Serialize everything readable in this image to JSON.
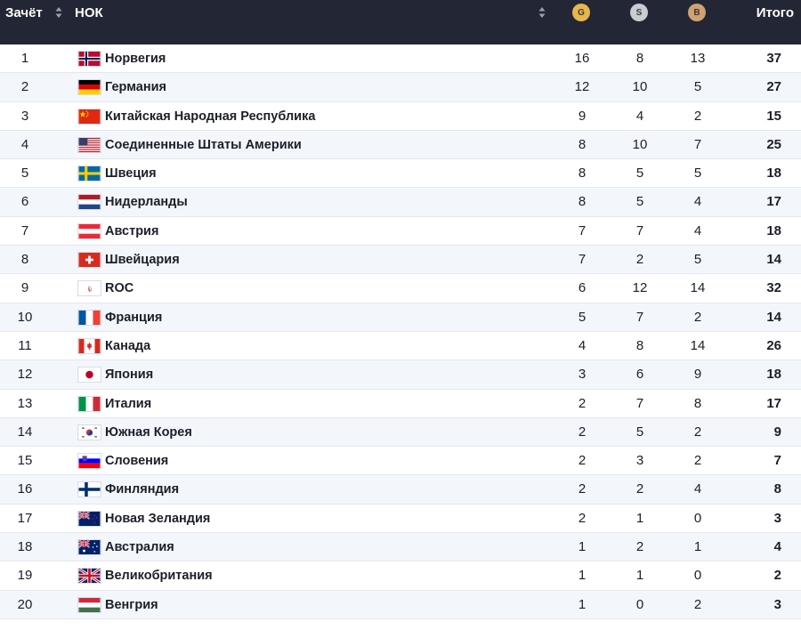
{
  "header": {
    "rank_label": "Зачёт",
    "noc_label": "НОК",
    "gold_label": "G",
    "silver_label": "S",
    "bronze_label": "B",
    "total_label": "Итого"
  },
  "rows": [
    {
      "rank": "1",
      "country": "Норвегия",
      "flag": "norway-flag-icon",
      "gold": "16",
      "silver": "8",
      "bronze": "13",
      "total": "37"
    },
    {
      "rank": "2",
      "country": "Германия",
      "flag": "germany-flag-icon",
      "gold": "12",
      "silver": "10",
      "bronze": "5",
      "total": "27"
    },
    {
      "rank": "3",
      "country": "Китайская Народная Республика",
      "flag": "china-flag-icon",
      "gold": "9",
      "silver": "4",
      "bronze": "2",
      "total": "15"
    },
    {
      "rank": "4",
      "country": "Соединенные Штаты Америки",
      "flag": "usa-flag-icon",
      "gold": "8",
      "silver": "10",
      "bronze": "7",
      "total": "25"
    },
    {
      "rank": "5",
      "country": "Швеция",
      "flag": "sweden-flag-icon",
      "gold": "8",
      "silver": "5",
      "bronze": "5",
      "total": "18"
    },
    {
      "rank": "6",
      "country": "Нидерланды",
      "flag": "netherlands-flag-icon",
      "gold": "8",
      "silver": "5",
      "bronze": "4",
      "total": "17"
    },
    {
      "rank": "7",
      "country": "Австрия",
      "flag": "austria-flag-icon",
      "gold": "7",
      "silver": "7",
      "bronze": "4",
      "total": "18"
    },
    {
      "rank": "8",
      "country": "Швейцария",
      "flag": "switzerland-flag-icon",
      "gold": "7",
      "silver": "2",
      "bronze": "5",
      "total": "14"
    },
    {
      "rank": "9",
      "country": "ROC",
      "flag": "roc-flag-icon",
      "gold": "6",
      "silver": "12",
      "bronze": "14",
      "total": "32"
    },
    {
      "rank": "10",
      "country": "Франция",
      "flag": "france-flag-icon",
      "gold": "5",
      "silver": "7",
      "bronze": "2",
      "total": "14"
    },
    {
      "rank": "11",
      "country": "Канада",
      "flag": "canada-flag-icon",
      "gold": "4",
      "silver": "8",
      "bronze": "14",
      "total": "26"
    },
    {
      "rank": "12",
      "country": "Япония",
      "flag": "japan-flag-icon",
      "gold": "3",
      "silver": "6",
      "bronze": "9",
      "total": "18"
    },
    {
      "rank": "13",
      "country": "Италия",
      "flag": "italy-flag-icon",
      "gold": "2",
      "silver": "7",
      "bronze": "8",
      "total": "17"
    },
    {
      "rank": "14",
      "country": "Южная Корея",
      "flag": "south-korea-flag-icon",
      "gold": "2",
      "silver": "5",
      "bronze": "2",
      "total": "9"
    },
    {
      "rank": "15",
      "country": "Словения",
      "flag": "slovenia-flag-icon",
      "gold": "2",
      "silver": "3",
      "bronze": "2",
      "total": "7"
    },
    {
      "rank": "16",
      "country": "Финляндия",
      "flag": "finland-flag-icon",
      "gold": "2",
      "silver": "2",
      "bronze": "4",
      "total": "8"
    },
    {
      "rank": "17",
      "country": "Новая Зеландия",
      "flag": "new-zealand-flag-icon",
      "gold": "2",
      "silver": "1",
      "bronze": "0",
      "total": "3"
    },
    {
      "rank": "18",
      "country": "Австралия",
      "flag": "australia-flag-icon",
      "gold": "1",
      "silver": "2",
      "bronze": "1",
      "total": "4"
    },
    {
      "rank": "19",
      "country": "Великобритания",
      "flag": "uk-flag-icon",
      "gold": "1",
      "silver": "1",
      "bronze": "0",
      "total": "2"
    },
    {
      "rank": "20",
      "country": "Венгрия",
      "flag": "hungary-flag-icon",
      "gold": "1",
      "silver": "0",
      "bronze": "2",
      "total": "3"
    }
  ],
  "colors": {
    "header_bg": "#232634",
    "gold": "#e6b64f",
    "silver": "#c9ccd1",
    "bronze": "#d0a171",
    "row_alt": "#f3f6fb"
  }
}
